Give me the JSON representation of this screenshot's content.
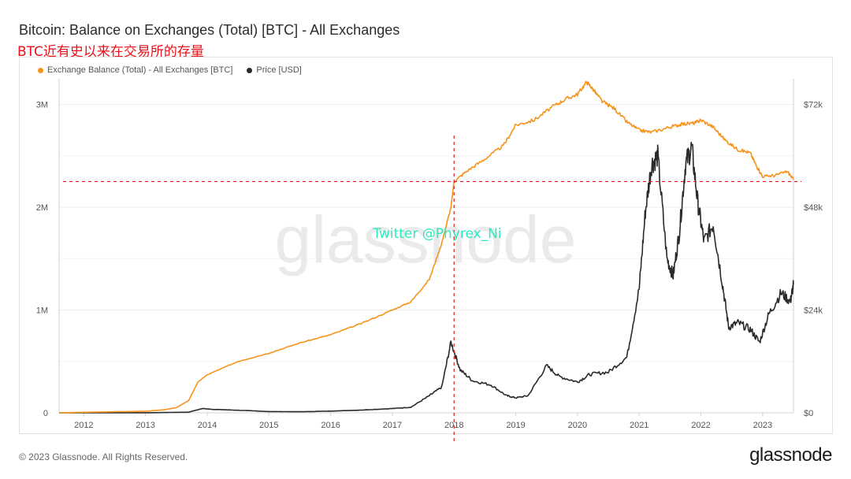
{
  "title": "Bitcoin: Balance on Exchanges (Total) [BTC] - All Exchanges",
  "subtitle": "BTC近有史以来在交易所的存量",
  "watermark": "glassnode",
  "annotation": "Twitter @Phyrex_Ni",
  "footer": "© 2023 Glassnode. All Rights Reserved.",
  "brand": "glassnode",
  "colors": {
    "balance": "#f7931a",
    "price": "#2a2a2a",
    "reference": "#e8121a"
  },
  "chart_data": {
    "type": "line",
    "title": "Bitcoin: Balance on Exchanges (Total) [BTC] - All Exchanges",
    "legend": [
      "Exchange Balance (Total) - All Exchanges [BTC]",
      "Price [USD]"
    ],
    "legend_position": "top-left",
    "x_ticks": [
      "2012",
      "2013",
      "2014",
      "2015",
      "2016",
      "2017",
      "2018",
      "2019",
      "2020",
      "2021",
      "2022",
      "2023"
    ],
    "xlim": [
      2011.6,
      2023.5
    ],
    "y_left": {
      "ticks": [
        "0",
        "1M",
        "2M",
        "3M"
      ],
      "values": [
        0,
        1000000,
        2000000,
        3000000
      ],
      "range": [
        0,
        3250000
      ]
    },
    "y_right": {
      "ticks": [
        "$0",
        "$24k",
        "$48k",
        "$72k"
      ],
      "values": [
        0,
        24000,
        48000,
        72000
      ],
      "range": [
        0,
        78000
      ]
    },
    "grid": true,
    "reference_lines": {
      "horizontal_balance_btc": 2250000,
      "vertical_year": 2018.0
    },
    "series": [
      {
        "name": "Exchange Balance (Total) - All Exchanges [BTC]",
        "axis": "left",
        "x": [
          2011.6,
          2012.0,
          2012.5,
          2013.0,
          2013.3,
          2013.5,
          2013.7,
          2013.85,
          2014.0,
          2014.5,
          2015.0,
          2015.5,
          2016.0,
          2016.5,
          2017.0,
          2017.3,
          2017.6,
          2017.8,
          2017.95,
          2018.0,
          2018.2,
          2018.5,
          2018.8,
          2019.0,
          2019.3,
          2019.6,
          2019.8,
          2020.0,
          2020.15,
          2020.25,
          2020.4,
          2020.6,
          2020.8,
          2021.0,
          2021.2,
          2021.5,
          2021.7,
          2021.9,
          2022.0,
          2022.2,
          2022.4,
          2022.6,
          2022.8,
          2022.9,
          2023.0,
          2023.2,
          2023.4,
          2023.5
        ],
        "values": [
          0,
          5000,
          10000,
          15000,
          30000,
          50000,
          120000,
          300000,
          370000,
          500000,
          580000,
          680000,
          760000,
          870000,
          1000000,
          1080000,
          1300000,
          1650000,
          2000000,
          2250000,
          2350000,
          2470000,
          2600000,
          2800000,
          2850000,
          2980000,
          3050000,
          3100000,
          3220000,
          3150000,
          3030000,
          2960000,
          2830000,
          2750000,
          2730000,
          2780000,
          2810000,
          2820000,
          2850000,
          2780000,
          2650000,
          2560000,
          2530000,
          2400000,
          2300000,
          2310000,
          2350000,
          2270000
        ]
      },
      {
        "name": "Price [USD]",
        "axis": "right",
        "x": [
          2011.6,
          2013.0,
          2013.7,
          2013.92,
          2014.1,
          2014.5,
          2015.0,
          2015.5,
          2016.0,
          2016.5,
          2017.0,
          2017.3,
          2017.6,
          2017.8,
          2017.95,
          2018.1,
          2018.3,
          2018.6,
          2018.85,
          2019.0,
          2019.2,
          2019.5,
          2019.7,
          2020.0,
          2020.2,
          2020.5,
          2020.8,
          2021.0,
          2021.1,
          2021.2,
          2021.3,
          2021.45,
          2021.55,
          2021.65,
          2021.75,
          2021.85,
          2021.95,
          2022.05,
          2022.2,
          2022.35,
          2022.45,
          2022.6,
          2022.8,
          2022.95,
          2023.1,
          2023.3,
          2023.45,
          2023.5
        ],
        "values": [
          5,
          15,
          150,
          1000,
          800,
          600,
          300,
          250,
          400,
          650,
          1000,
          1300,
          4000,
          6000,
          16500,
          10000,
          7500,
          6500,
          4000,
          3500,
          4000,
          11000,
          8500,
          7200,
          9000,
          9500,
          13000,
          29000,
          47000,
          58000,
          60000,
          36000,
          32000,
          42000,
          58000,
          62000,
          49000,
          40000,
          44000,
          30000,
          20000,
          21000,
          19500,
          16500,
          23000,
          28000,
          26000,
          30000
        ]
      }
    ]
  }
}
